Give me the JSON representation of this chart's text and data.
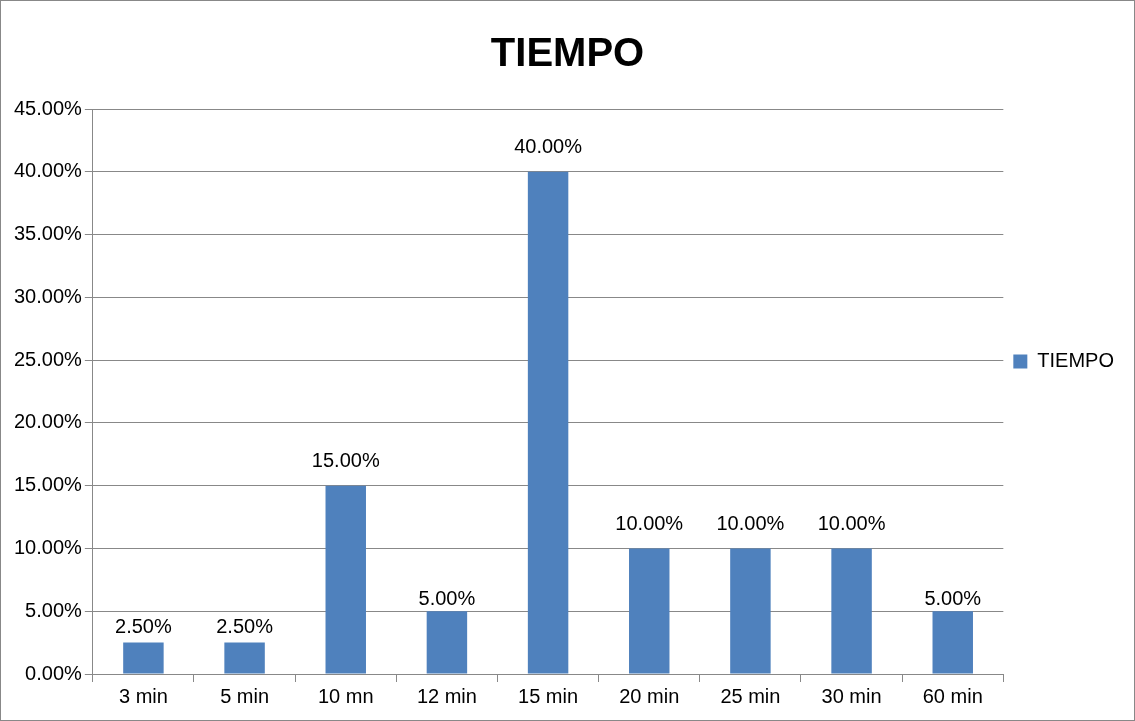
{
  "chart_data": {
    "type": "bar",
    "title": "TIEMPO",
    "categories": [
      "3 min",
      "5 min",
      "10 mn",
      "12 min",
      "15 min",
      "20 min",
      "25 min",
      "30 min",
      "60 min"
    ],
    "series": [
      {
        "name": "TIEMPO",
        "color": "#4f81bd",
        "values": [
          2.5,
          2.5,
          15,
          5,
          40,
          10,
          10,
          10,
          5
        ],
        "value_labels": [
          "2.50%",
          "2.50%",
          "15.00%",
          "5.00%",
          "40.00%",
          "10.00%",
          "10.00%",
          "10.00%",
          "5.00%"
        ]
      }
    ],
    "ylim": [
      0,
      45
    ],
    "yticks": [
      {
        "value": 0,
        "label": "0.00%"
      },
      {
        "value": 5,
        "label": "5.00%"
      },
      {
        "value": 10,
        "label": "10.00%"
      },
      {
        "value": 15,
        "label": "15.00%"
      },
      {
        "value": 20,
        "label": "20.00%"
      },
      {
        "value": 25,
        "label": "25.00%"
      },
      {
        "value": 30,
        "label": "30.00%"
      },
      {
        "value": 35,
        "label": "35.00%"
      },
      {
        "value": 40,
        "label": "40.00%"
      },
      {
        "value": 45,
        "label": "45.00%"
      }
    ],
    "grid": "y",
    "legend": "right"
  }
}
